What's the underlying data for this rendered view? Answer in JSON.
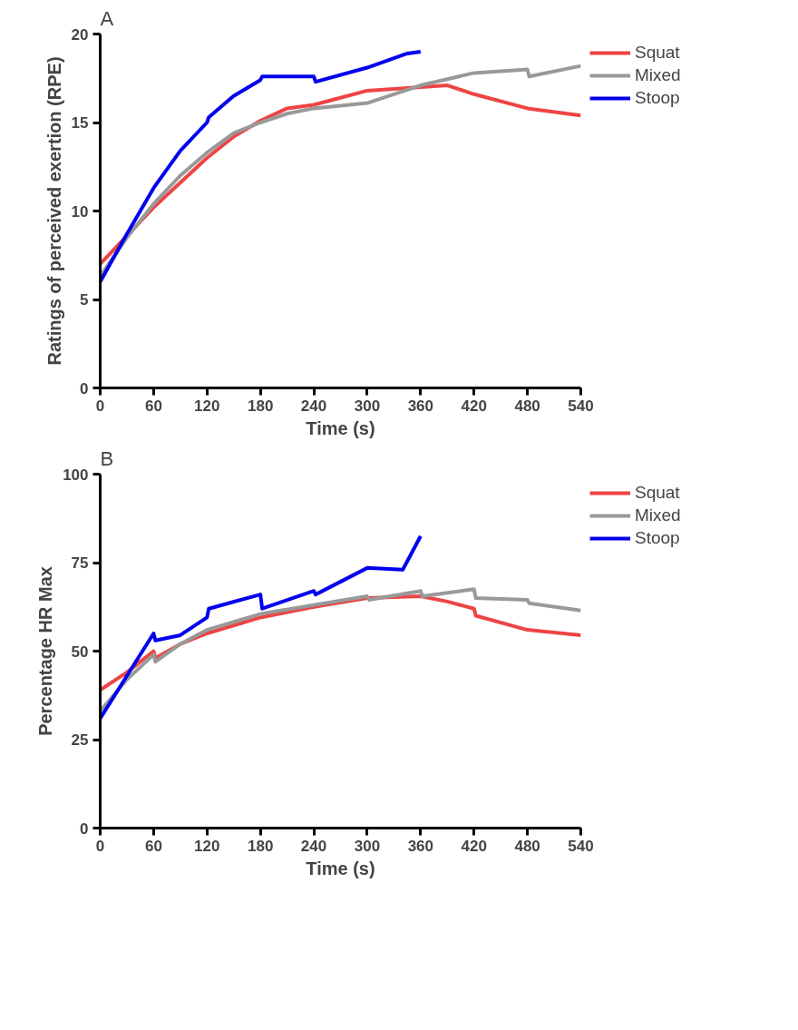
{
  "chart_data": [
    {
      "type": "line",
      "title": "A",
      "xlabel": "Time (s)",
      "ylabel": "Ratings of perceived exertion (RPE)",
      "xlim": [
        0,
        540
      ],
      "ylim": [
        0,
        20
      ],
      "xticks": [
        0,
        60,
        120,
        180,
        240,
        300,
        360,
        420,
        480,
        540
      ],
      "yticks": [
        0,
        5,
        10,
        15,
        20
      ],
      "grid": false,
      "legend": "right",
      "marker": "none",
      "line_style": "solid",
      "series": [
        {
          "name": "Squat",
          "color": "#ee4444",
          "x": [
            0,
            30,
            60,
            90,
            120,
            150,
            180,
            210,
            240,
            270,
            300,
            330,
            360,
            390,
            420,
            480,
            540
          ],
          "values": [
            7,
            8.6,
            10.2,
            11.6,
            13,
            14.2,
            15.1,
            15.8,
            16,
            16.4,
            16.8,
            16.9,
            17,
            17.1,
            16.6,
            15.8,
            15.4
          ]
        },
        {
          "name": "Mixed",
          "color": "#999999",
          "x": [
            0,
            30,
            60,
            90,
            120,
            150,
            180,
            210,
            240,
            300,
            360,
            420,
            480,
            482,
            540
          ],
          "values": [
            6.3,
            8.5,
            10.4,
            12,
            13.3,
            14.4,
            15,
            15.5,
            15.8,
            16.1,
            17.1,
            17.8,
            18,
            17.6,
            18.2
          ]
        },
        {
          "name": "Stoop",
          "color": "#0000ee",
          "x": [
            0,
            30,
            60,
            90,
            120,
            122,
            150,
            180,
            182,
            240,
            242,
            300,
            345,
            360
          ],
          "values": [
            6,
            8.7,
            11.3,
            13.4,
            15,
            15.3,
            16.5,
            17.4,
            17.6,
            17.6,
            17.3,
            18.1,
            18.9,
            19
          ]
        }
      ]
    },
    {
      "type": "line",
      "title": "B",
      "xlabel": "Time (s)",
      "ylabel": "Percentage HR Max",
      "xlim": [
        0,
        540
      ],
      "ylim": [
        0,
        100
      ],
      "xticks": [
        0,
        60,
        120,
        180,
        240,
        300,
        360,
        420,
        480,
        540
      ],
      "yticks": [
        0,
        25,
        50,
        75,
        100
      ],
      "grid": false,
      "legend": "right",
      "marker": "none",
      "line_style": "solid",
      "series": [
        {
          "name": "Squat",
          "color": "#ee4444",
          "x": [
            0,
            30,
            60,
            62,
            90,
            120,
            180,
            240,
            300,
            360,
            390,
            420,
            422,
            480,
            540
          ],
          "values": [
            39,
            44,
            50,
            48,
            52,
            55,
            59.5,
            62.5,
            65,
            65.5,
            64,
            62,
            60,
            56,
            54.5
          ]
        },
        {
          "name": "Mixed",
          "color": "#999999",
          "x": [
            0,
            30,
            60,
            62,
            90,
            120,
            180,
            240,
            300,
            302,
            360,
            362,
            420,
            422,
            480,
            482,
            540
          ],
          "values": [
            33,
            42,
            49,
            47,
            52,
            56,
            60.5,
            63,
            65.5,
            64.5,
            67,
            65.5,
            67.5,
            65,
            64.5,
            63.5,
            61.5
          ]
        },
        {
          "name": "Stoop",
          "color": "#0000ee",
          "x": [
            0,
            30,
            60,
            62,
            90,
            120,
            122,
            180,
            182,
            240,
            242,
            300,
            340,
            360
          ],
          "values": [
            31,
            43,
            55,
            53,
            54.5,
            59.5,
            62,
            66,
            62,
            67,
            66,
            73.5,
            73,
            82.5
          ]
        }
      ]
    }
  ]
}
